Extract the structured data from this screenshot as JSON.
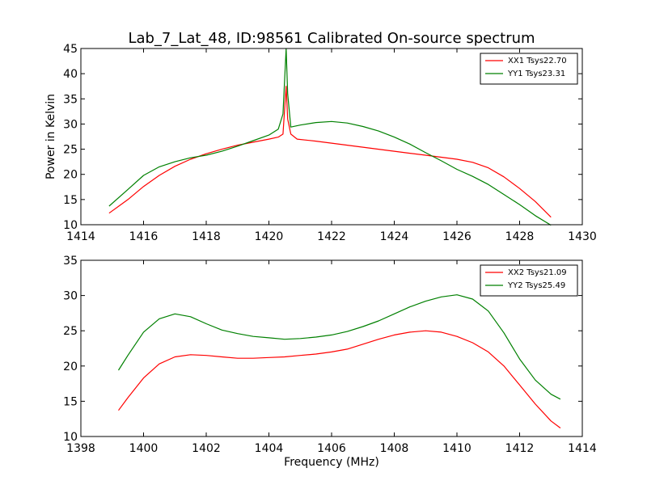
{
  "chart_data": [
    {
      "type": "line",
      "title": "Lab_7_Lat_48, ID:98561 Calibrated On-source spectrum",
      "xlabel": "",
      "ylabel": "Power in Kelvin",
      "xlim": [
        1414,
        1430
      ],
      "ylim": [
        10,
        45
      ],
      "xticks": [
        1414,
        1416,
        1418,
        1420,
        1422,
        1424,
        1426,
        1428,
        1430
      ],
      "yticks": [
        10,
        15,
        20,
        25,
        30,
        35,
        40,
        45
      ],
      "legend_position": "top-right",
      "series": [
        {
          "name": "XX1 Tsys22.70",
          "color": "#ff0000",
          "x": [
            1414.9,
            1415.5,
            1416.0,
            1416.5,
            1417.0,
            1417.5,
            1418.0,
            1418.5,
            1419.0,
            1419.5,
            1420.0,
            1420.3,
            1420.45,
            1420.55,
            1420.6,
            1420.7,
            1420.9,
            1421.5,
            1422.0,
            1422.5,
            1423.0,
            1423.5,
            1424.0,
            1424.5,
            1425.0,
            1425.5,
            1426.0,
            1426.5,
            1427.0,
            1427.5,
            1428.0,
            1428.5,
            1429.0
          ],
          "y": [
            12.3,
            15.0,
            17.6,
            19.8,
            21.6,
            23.0,
            24.1,
            25.0,
            25.8,
            26.4,
            27.0,
            27.4,
            28.0,
            37.5,
            31.0,
            28.0,
            27.0,
            26.6,
            26.2,
            25.8,
            25.4,
            25.0,
            24.6,
            24.2,
            23.8,
            23.4,
            23.0,
            22.4,
            21.3,
            19.5,
            17.2,
            14.6,
            11.5
          ]
        },
        {
          "name": "YY1 Tsys23.31",
          "color": "#008000",
          "x": [
            1414.9,
            1415.5,
            1416.0,
            1416.5,
            1417.0,
            1417.5,
            1418.0,
            1418.5,
            1419.0,
            1419.5,
            1420.0,
            1420.3,
            1420.45,
            1420.55,
            1420.6,
            1420.7,
            1421.0,
            1421.5,
            1422.0,
            1422.5,
            1423.0,
            1423.5,
            1424.0,
            1424.5,
            1425.0,
            1425.5,
            1426.0,
            1426.5,
            1427.0,
            1427.5,
            1428.0,
            1428.5,
            1429.0
          ],
          "y": [
            13.7,
            17.0,
            19.8,
            21.5,
            22.5,
            23.3,
            23.8,
            24.6,
            25.6,
            26.7,
            27.8,
            29.0,
            32.0,
            45.0,
            36.0,
            29.4,
            29.8,
            30.3,
            30.5,
            30.2,
            29.5,
            28.6,
            27.4,
            26.0,
            24.3,
            22.7,
            21.0,
            19.6,
            18.0,
            16.0,
            14.0,
            11.8,
            9.9
          ]
        }
      ]
    },
    {
      "type": "line",
      "title": "",
      "xlabel": "Frequency (MHz)",
      "ylabel": "",
      "xlim": [
        1398,
        1414
      ],
      "ylim": [
        10,
        35
      ],
      "xticks": [
        1398,
        1400,
        1402,
        1404,
        1406,
        1408,
        1410,
        1412,
        1414
      ],
      "yticks": [
        10,
        15,
        20,
        25,
        30,
        35
      ],
      "legend_position": "top-right",
      "series": [
        {
          "name": "XX2 Tsys21.09",
          "color": "#ff0000",
          "x": [
            1399.2,
            1399.5,
            1400.0,
            1400.5,
            1401.0,
            1401.5,
            1402.0,
            1402.5,
            1403.0,
            1403.5,
            1404.0,
            1404.5,
            1405.0,
            1405.5,
            1406.0,
            1406.5,
            1407.0,
            1407.5,
            1408.0,
            1408.5,
            1409.0,
            1409.5,
            1410.0,
            1410.5,
            1411.0,
            1411.5,
            1412.0,
            1412.5,
            1413.0,
            1413.3
          ],
          "y": [
            13.7,
            15.5,
            18.3,
            20.3,
            21.3,
            21.6,
            21.5,
            21.3,
            21.1,
            21.1,
            21.2,
            21.3,
            21.5,
            21.7,
            22.0,
            22.4,
            23.1,
            23.8,
            24.4,
            24.8,
            25.0,
            24.8,
            24.2,
            23.3,
            22.0,
            20.0,
            17.3,
            14.6,
            12.2,
            11.2
          ]
        },
        {
          "name": "YY2 Tsys25.49",
          "color": "#008000",
          "x": [
            1399.2,
            1399.5,
            1400.0,
            1400.5,
            1401.0,
            1401.5,
            1402.0,
            1402.5,
            1403.0,
            1403.5,
            1404.0,
            1404.5,
            1405.0,
            1405.5,
            1406.0,
            1406.5,
            1407.0,
            1407.5,
            1408.0,
            1408.5,
            1409.0,
            1409.5,
            1410.0,
            1410.5,
            1411.0,
            1411.5,
            1412.0,
            1412.5,
            1413.0,
            1413.3
          ],
          "y": [
            19.4,
            21.5,
            24.8,
            26.7,
            27.4,
            27.0,
            26.0,
            25.1,
            24.6,
            24.2,
            24.0,
            23.8,
            23.9,
            24.1,
            24.4,
            24.9,
            25.6,
            26.4,
            27.4,
            28.4,
            29.2,
            29.8,
            30.1,
            29.5,
            27.8,
            24.7,
            21.0,
            18.0,
            16.0,
            15.3
          ]
        }
      ]
    }
  ]
}
